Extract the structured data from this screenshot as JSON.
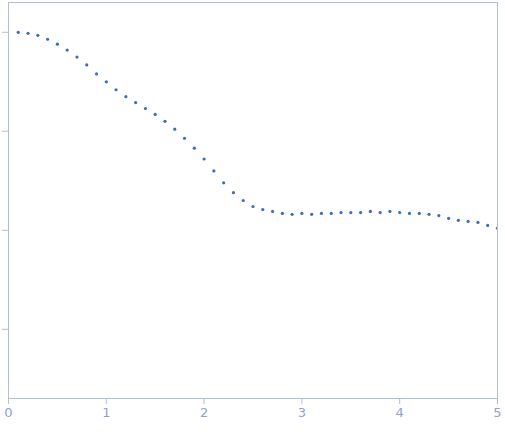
{
  "chart_data": {
    "type": "scatter",
    "x": [
      0.1,
      0.2,
      0.3,
      0.4,
      0.5,
      0.6,
      0.7,
      0.8,
      0.9,
      1.0,
      1.1,
      1.2,
      1.3,
      1.4,
      1.5,
      1.6,
      1.7,
      1.8,
      1.9,
      2.0,
      2.1,
      2.2,
      2.3,
      2.4,
      2.5,
      2.6,
      2.7,
      2.8,
      2.9,
      3.0,
      3.1,
      3.2,
      3.3,
      3.4,
      3.5,
      3.6,
      3.7,
      3.8,
      3.9,
      4.0,
      4.1,
      4.2,
      4.3,
      4.4,
      4.5,
      4.6,
      4.7,
      4.8,
      4.9,
      5.0
    ],
    "values": [
      1.0,
      0.977,
      0.933,
      0.851,
      0.759,
      0.661,
      0.562,
      0.468,
      0.38,
      0.316,
      0.263,
      0.224,
      0.195,
      0.17,
      0.148,
      0.126,
      0.105,
      0.0851,
      0.0676,
      0.0525,
      0.0398,
      0.0302,
      0.024,
      0.02,
      0.0174,
      0.0162,
      0.0155,
      0.0148,
      0.0145,
      0.0148,
      0.0145,
      0.0148,
      0.0148,
      0.0151,
      0.0151,
      0.0151,
      0.0155,
      0.0151,
      0.0155,
      0.0151,
      0.0148,
      0.0148,
      0.0145,
      0.0141,
      0.0132,
      0.0126,
      0.0123,
      0.012,
      0.0112,
      0.0105
    ],
    "color": "#3b6cc0",
    "marker": "circle",
    "xlim": [
      0,
      5
    ],
    "xticks": [
      0,
      1,
      2,
      3,
      4,
      5
    ],
    "ylim": [
      0.0002,
      2
    ],
    "yticks": [
      0.001,
      0.01,
      0.1,
      1
    ],
    "log": "y",
    "tick_labels": "x",
    "grid": false
  }
}
